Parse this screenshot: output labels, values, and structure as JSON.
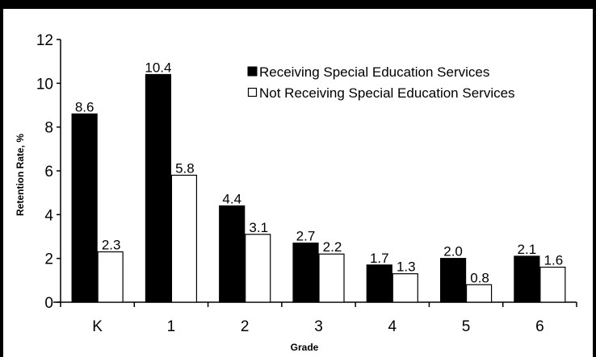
{
  "chart_data": {
    "type": "bar",
    "xlabel": "Grade",
    "ylabel": "Retention Rate, %",
    "ylim": [
      0,
      12
    ],
    "yticks": [
      0,
      2,
      4,
      6,
      8,
      10,
      12
    ],
    "grid": false,
    "legend_position": "top-right",
    "categories": [
      "K",
      "1",
      "2",
      "3",
      "4",
      "5",
      "6"
    ],
    "series": [
      {
        "name": "Receiving Special Education Services",
        "color": "#000000",
        "values": [
          8.6,
          10.4,
          4.4,
          2.7,
          1.7,
          2.0,
          2.1
        ],
        "labels": [
          "8.6",
          "10.4",
          "4.4",
          "2.7",
          "1.7",
          "2.0",
          "2.1"
        ]
      },
      {
        "name": "Not Receiving Special Education Services",
        "color": "#ffffff",
        "values": [
          2.3,
          5.8,
          3.1,
          2.2,
          1.3,
          0.8,
          1.6
        ],
        "labels": [
          "2.3",
          "5.8",
          "3.1",
          "2.2",
          "1.3",
          "0.8",
          "1.6"
        ]
      }
    ]
  }
}
